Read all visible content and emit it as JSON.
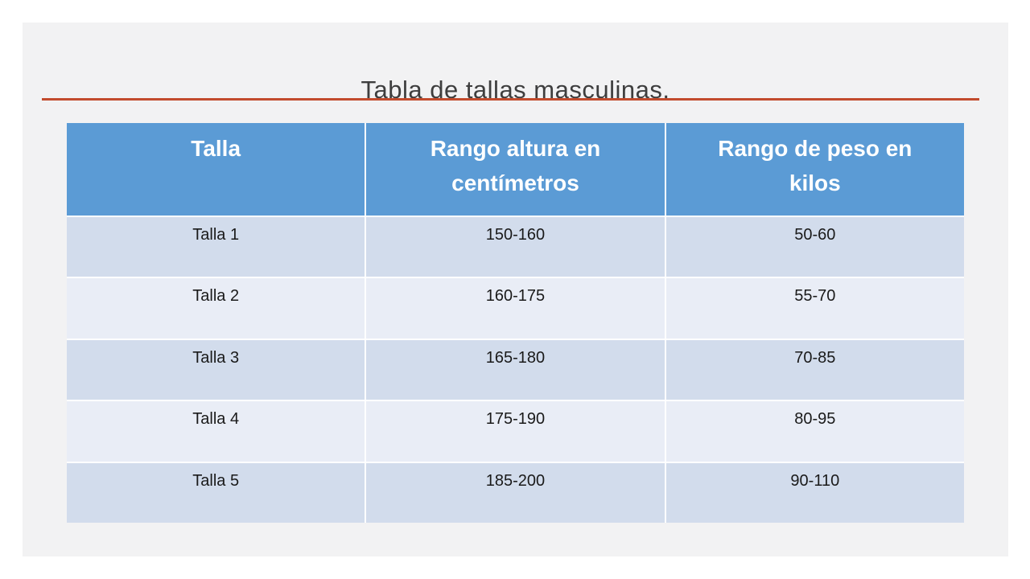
{
  "slide": {
    "title": "Tabla de tallas masculinas."
  },
  "table": {
    "columns": [
      "Talla",
      "Rango altura en\ncentímetros",
      "Rango de peso en\nkilos"
    ],
    "rows": [
      [
        "Talla 1",
        "150-160",
        "50-60"
      ],
      [
        "Talla 2",
        "160-175",
        "55-70"
      ],
      [
        "Talla 3",
        "165-180",
        "70-85"
      ],
      [
        "Talla 4",
        "175-190",
        "80-95"
      ],
      [
        "Talla 5",
        "185-200",
        "90-110"
      ]
    ]
  },
  "colors": {
    "slide_bg": "#f2f2f3",
    "page_bg": "#ffffff",
    "header_bg": "#5b9bd5",
    "row_odd": "#d2dcec",
    "row_even": "#e9edf6",
    "accent_line": "#c24b2d",
    "title_text": "#3e3e3e",
    "header_text": "#ffffff",
    "body_text": "#1a1a1a",
    "separator": "#ffffff"
  }
}
